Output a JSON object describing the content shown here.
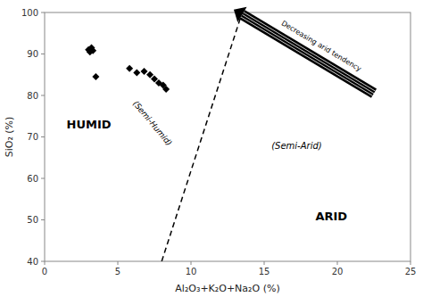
{
  "chart_data": {
    "type": "scatter",
    "xlabel": "Al₂O₃+K₂O+Na₂O (%)",
    "ylabel": "SiO₂ (%)",
    "xlim": [
      0,
      25
    ],
    "ylim": [
      40,
      100
    ],
    "xticks": [
      0,
      5,
      10,
      15,
      20,
      25
    ],
    "yticks": [
      40,
      50,
      60,
      70,
      80,
      90,
      100
    ],
    "series": [
      {
        "type": "scatter",
        "marker": "diamond",
        "color": "#000000",
        "x": [
          3.0,
          3.2,
          3.1,
          3.3,
          3.5,
          5.8,
          6.3,
          6.8,
          7.2,
          7.5,
          7.8,
          8.1,
          8.3
        ],
        "values": [
          91.0,
          91.5,
          90.5,
          90.8,
          84.5,
          86.5,
          85.5,
          85.8,
          85.0,
          84.0,
          83.0,
          82.5,
          81.5
        ]
      },
      {
        "type": "line",
        "line_style": "dashed",
        "color": "#000000",
        "x": [
          8.0,
          13.5
        ],
        "values": [
          40.0,
          100.0
        ]
      },
      {
        "type": "arrow",
        "color": "#000000",
        "x": [
          13.5,
          22.5
        ],
        "values": [
          99.5,
          80.5
        ]
      }
    ],
    "annotations": [
      {
        "text": "Decreasing arid tendency",
        "x": 18.5,
        "y": 89.5
      },
      {
        "text": "HUMID",
        "x": 1.5,
        "y": 72.0
      },
      {
        "text": "(Semi-Humid)",
        "x": 6.0,
        "y": 78.0
      },
      {
        "text": "(Semi-Arid)",
        "x": 15.5,
        "y": 67.0
      },
      {
        "text": "ARID",
        "x": 18.5,
        "y": 50.0
      }
    ]
  }
}
